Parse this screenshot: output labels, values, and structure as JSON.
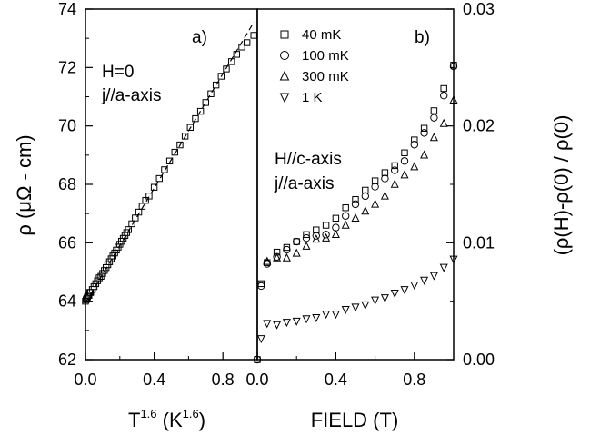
{
  "chart_data": [
    {
      "panel": "a)",
      "type": "scatter",
      "xlabel": "T^1.6 (K^1.6)",
      "ylabel": "ρ (μΩ - cm)",
      "xlim": [
        0.0,
        1.0
      ],
      "ylim": [
        62,
        74
      ],
      "xticks": [
        "0.0",
        "0.4",
        "0.8"
      ],
      "yticks": [
        "62",
        "64",
        "66",
        "68",
        "70",
        "72",
        "74"
      ],
      "annotations": [
        "H=0",
        "j//a-axis"
      ],
      "fit_line": {
        "style": "dashed",
        "x": [
          0.0,
          0.98
        ],
        "y": [
          63.95,
          73.55
        ]
      },
      "series": [
        {
          "marker": "square",
          "x": [
            0.0,
            0.004,
            0.008,
            0.012,
            0.016,
            0.02,
            0.025,
            0.03,
            0.04,
            0.05,
            0.06,
            0.07,
            0.08,
            0.09,
            0.1,
            0.11,
            0.12,
            0.13,
            0.14,
            0.15,
            0.16,
            0.17,
            0.18,
            0.19,
            0.2,
            0.21,
            0.22,
            0.23,
            0.24,
            0.25,
            0.27,
            0.29,
            0.31,
            0.33,
            0.35,
            0.37,
            0.4,
            0.43,
            0.46,
            0.49,
            0.52,
            0.55,
            0.58,
            0.61,
            0.64,
            0.67,
            0.7,
            0.73,
            0.76,
            0.79,
            0.82,
            0.85,
            0.88,
            0.91,
            0.94,
            0.98
          ],
          "y": [
            64.0,
            64.05,
            64.1,
            64.15,
            64.2,
            64.2,
            64.3,
            64.3,
            64.4,
            64.5,
            64.6,
            64.7,
            64.8,
            64.85,
            64.95,
            65.05,
            65.15,
            65.25,
            65.35,
            65.45,
            65.55,
            65.65,
            65.75,
            65.85,
            65.95,
            66.05,
            66.15,
            66.25,
            66.35,
            66.45,
            66.65,
            66.85,
            67.05,
            67.25,
            67.45,
            67.6,
            67.9,
            68.2,
            68.5,
            68.8,
            69.1,
            69.35,
            69.65,
            69.95,
            70.25,
            70.5,
            70.8,
            71.1,
            71.4,
            71.7,
            71.95,
            72.2,
            72.45,
            72.7,
            72.85,
            73.1
          ]
        }
      ]
    },
    {
      "panel": "b)",
      "type": "scatter",
      "xlabel": "FIELD (T)",
      "ylabel": "(ρ(H)-ρ(0) / ρ(0)",
      "xlim": [
        0.0,
        1.0
      ],
      "ylim": [
        0.0,
        0.03
      ],
      "xticks": [
        "0.0",
        "0.4",
        "0.8"
      ],
      "yticks": [
        "0.00",
        "0.01",
        "0.02",
        "0.03"
      ],
      "annotations": [
        "H//c-axis",
        "j//a-axis"
      ],
      "legend_position": "top-left",
      "series": [
        {
          "name": "40 mK",
          "marker": "square",
          "x": [
            0.0,
            0.02,
            0.05,
            0.1,
            0.15,
            0.2,
            0.25,
            0.3,
            0.35,
            0.4,
            0.45,
            0.5,
            0.55,
            0.6,
            0.65,
            0.7,
            0.75,
            0.8,
            0.85,
            0.9,
            0.95,
            1.0
          ],
          "y": [
            0.0,
            0.0065,
            0.0083,
            0.0092,
            0.0096,
            0.0101,
            0.0107,
            0.0111,
            0.0115,
            0.0121,
            0.013,
            0.0137,
            0.0145,
            0.0153,
            0.016,
            0.0166,
            0.0177,
            0.0188,
            0.0198,
            0.0213,
            0.0232,
            0.0252
          ]
        },
        {
          "name": "100 mK",
          "marker": "circle",
          "x": [
            0.0,
            0.02,
            0.05,
            0.1,
            0.15,
            0.2,
            0.25,
            0.3,
            0.35,
            0.4,
            0.45,
            0.5,
            0.55,
            0.6,
            0.65,
            0.7,
            0.75,
            0.8,
            0.85,
            0.9,
            0.95,
            1.0
          ],
          "y": [
            0.0,
            0.0063,
            0.0082,
            0.0088,
            0.0094,
            0.0101,
            0.0104,
            0.0106,
            0.0107,
            0.0113,
            0.0123,
            0.0133,
            0.014,
            0.0148,
            0.0155,
            0.0162,
            0.017,
            0.0184,
            0.0194,
            0.0207,
            0.0226,
            0.0251
          ]
        },
        {
          "name": "300 mK",
          "marker": "triangle-up",
          "x": [
            0.05,
            0.1,
            0.15,
            0.2,
            0.25,
            0.3,
            0.35,
            0.4,
            0.45,
            0.5,
            0.55,
            0.6,
            0.65,
            0.7,
            0.75,
            0.8,
            0.85,
            0.9,
            0.95,
            1.0
          ],
          "y": [
            0.0084,
            0.0087,
            0.0087,
            0.0091,
            0.0097,
            0.0103,
            0.0104,
            0.0107,
            0.0115,
            0.0121,
            0.0127,
            0.0133,
            0.014,
            0.015,
            0.0158,
            0.0165,
            0.0175,
            0.019,
            0.0202,
            0.0222
          ]
        },
        {
          "name": "1 K",
          "marker": "triangle-down",
          "x": [
            0.02,
            0.05,
            0.1,
            0.15,
            0.2,
            0.25,
            0.3,
            0.35,
            0.4,
            0.45,
            0.5,
            0.55,
            0.6,
            0.65,
            0.7,
            0.75,
            0.8,
            0.85,
            0.9,
            0.95,
            1.0
          ],
          "y": [
            0.0018,
            0.0031,
            0.003,
            0.0032,
            0.0033,
            0.0035,
            0.0036,
            0.0039,
            0.0039,
            0.0043,
            0.0045,
            0.0047,
            0.0051,
            0.0053,
            0.0057,
            0.006,
            0.0064,
            0.0068,
            0.0072,
            0.0079,
            0.0086
          ]
        }
      ]
    }
  ]
}
